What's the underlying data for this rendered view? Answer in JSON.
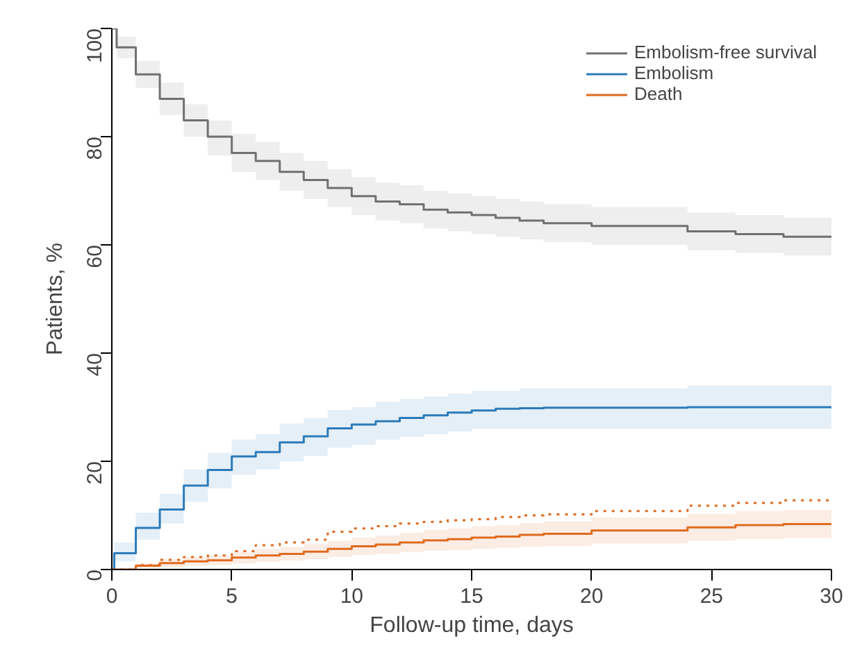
{
  "chart_data": {
    "type": "step",
    "xlabel": "Follow-up time, days",
    "ylabel": "Patients, %",
    "xlim": [
      0,
      30
    ],
    "xticks": [
      0,
      5,
      10,
      15,
      20,
      25,
      30
    ],
    "ylim": [
      0,
      100
    ],
    "yticks": [
      0,
      20,
      40,
      60,
      80,
      100
    ],
    "grid": false,
    "legend": "top right",
    "series": [
      {
        "name": "Embolism-free survival",
        "color": "#707070",
        "line_style": "solid",
        "x": [
          0,
          0.2,
          1,
          2,
          3,
          4,
          5,
          6,
          7,
          8,
          9,
          10,
          11,
          12,
          13,
          14,
          15,
          16,
          17,
          18,
          20,
          24,
          26,
          28,
          30
        ],
        "values": [
          100,
          96.5,
          91.5,
          87,
          83,
          80,
          77,
          75.5,
          73.5,
          72,
          70.5,
          69,
          68,
          67.5,
          66.5,
          66,
          65.5,
          65,
          64.5,
          64,
          63.5,
          62.5,
          62,
          61.5,
          61.5
        ],
        "lower": [
          100,
          94.5,
          89,
          84,
          80,
          76.5,
          73.5,
          72,
          70,
          68.5,
          67,
          65.5,
          64.5,
          64,
          63,
          62.5,
          62,
          61.5,
          61,
          60.5,
          60,
          59,
          58.5,
          58,
          58
        ],
        "upper": [
          100,
          98.5,
          94,
          90,
          86,
          83,
          80.5,
          79,
          77,
          75.5,
          74,
          72.5,
          71.5,
          71,
          70,
          69.5,
          69,
          68.5,
          68,
          67.5,
          67,
          66,
          65.5,
          65,
          65
        ]
      },
      {
        "name": "Embolism",
        "color": "#2b7bba",
        "line_style": "solid",
        "x": [
          0,
          0.1,
          1,
          2,
          3,
          4,
          5,
          6,
          7,
          8,
          9,
          10,
          11,
          12,
          13,
          14,
          15,
          16,
          17,
          18,
          24,
          30
        ],
        "values": [
          0,
          3,
          7.7,
          11.1,
          15.5,
          18.4,
          20.9,
          21.7,
          23.5,
          24.6,
          26.1,
          26.8,
          27.4,
          28,
          28.5,
          29,
          29.4,
          29.7,
          29.8,
          29.9,
          30,
          30
        ],
        "lower": [
          0,
          1.5,
          5.5,
          8.5,
          12.5,
          15,
          17.5,
          18.5,
          20,
          21,
          22.5,
          23,
          24,
          24.5,
          25,
          25.5,
          26,
          26,
          26,
          26,
          26,
          26
        ],
        "upper": [
          0,
          5,
          10.5,
          14,
          18.5,
          21.5,
          24,
          25,
          27,
          28,
          29.5,
          30,
          31,
          31.5,
          32,
          32.5,
          33,
          33,
          33.5,
          33.5,
          34,
          34
        ]
      },
      {
        "name": "Death",
        "color": "#e06a1e",
        "line_style": "solid",
        "x": [
          0,
          1,
          2,
          3,
          4,
          5,
          6,
          7,
          8,
          9,
          10,
          11,
          12,
          13,
          14,
          15,
          16,
          17,
          18,
          20,
          24,
          26,
          28,
          30
        ],
        "values": [
          0,
          0.7,
          1.2,
          1.5,
          1.7,
          2.2,
          2.6,
          2.9,
          3.3,
          3.8,
          4.3,
          4.6,
          5.0,
          5.4,
          5.6,
          5.9,
          6.1,
          6.4,
          6.6,
          7.2,
          7.8,
          8.2,
          8.4,
          8.4
        ],
        "lower": [
          0,
          0.2,
          0.5,
          0.7,
          0.8,
          1.1,
          1.4,
          1.6,
          1.9,
          2.3,
          2.7,
          2.9,
          3.2,
          3.5,
          3.6,
          3.8,
          4.0,
          4.2,
          4.3,
          4.8,
          5.3,
          5.6,
          5.8,
          5.8
        ],
        "upper": [
          0,
          1.2,
          1.9,
          2.3,
          2.6,
          3.3,
          3.8,
          4.2,
          4.7,
          5.3,
          5.9,
          6.3,
          6.8,
          7.3,
          7.6,
          8.0,
          8.2,
          8.6,
          8.9,
          9.6,
          10.3,
          10.8,
          11.0,
          11.0
        ]
      },
      {
        "color": "#e06a1e",
        "line_style": "dotted",
        "x": [
          0,
          1,
          2,
          3,
          4,
          5,
          6,
          7,
          8,
          9,
          10,
          11,
          12,
          13,
          14,
          15,
          16,
          17,
          18,
          20,
          24,
          26,
          28,
          30
        ],
        "values": [
          0,
          0.8,
          1.8,
          2.3,
          2.6,
          3.4,
          4.5,
          5.0,
          5.5,
          7.0,
          7.6,
          8.0,
          8.5,
          8.8,
          9.1,
          9.3,
          9.7,
          10.0,
          10.2,
          10.8,
          11.8,
          12.3,
          12.8,
          12.8
        ]
      }
    ]
  }
}
